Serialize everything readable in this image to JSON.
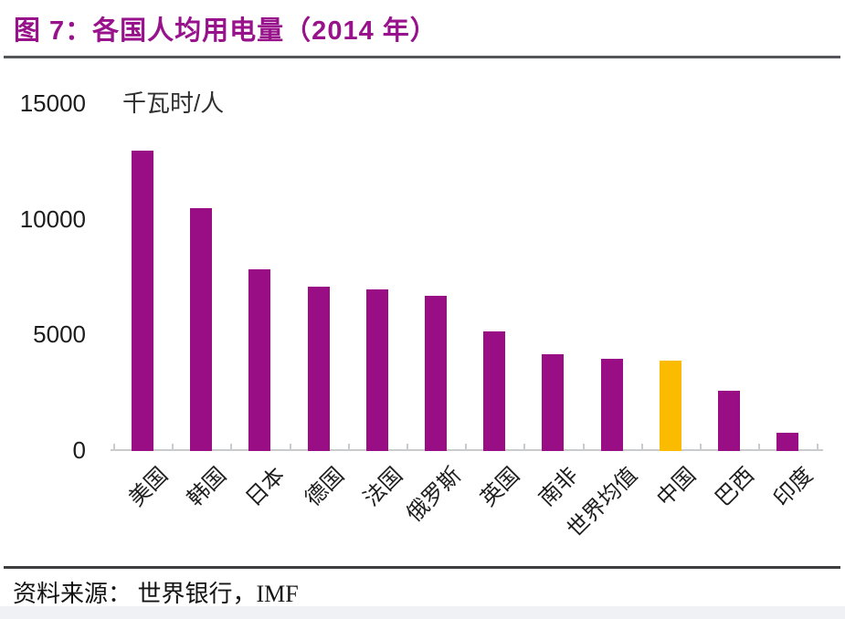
{
  "title": "图 7：各国人均用电量（2014 年）",
  "source_note": "资料来源：  世界银行，IMF",
  "colors": {
    "title": "#97128B",
    "bar": "#990D85",
    "highlight_bar": "#FBBB00",
    "axis": "#C9CBCD",
    "top_rule": "#55565A",
    "bottom_rule": "#3E3E40"
  },
  "chart_data": {
    "type": "bar",
    "title": "图 7：各国人均用电量（2014 年）",
    "unit_label": "千瓦时/人",
    "xlabel": "",
    "ylabel": "千瓦时/人",
    "categories": [
      "美国",
      "韩国",
      "日本",
      "德国",
      "法国",
      "俄罗斯",
      "英国",
      "南非",
      "世界均值",
      "中国",
      "巴西",
      "印度"
    ],
    "values": [
      13000,
      10500,
      7850,
      7100,
      7000,
      6700,
      5150,
      4200,
      4000,
      3900,
      2600,
      800
    ],
    "highlight_category": "中国",
    "yticks": [
      0,
      5000,
      10000,
      15000
    ],
    "ylim": [
      0,
      15000
    ],
    "grid": false,
    "legend": null
  }
}
